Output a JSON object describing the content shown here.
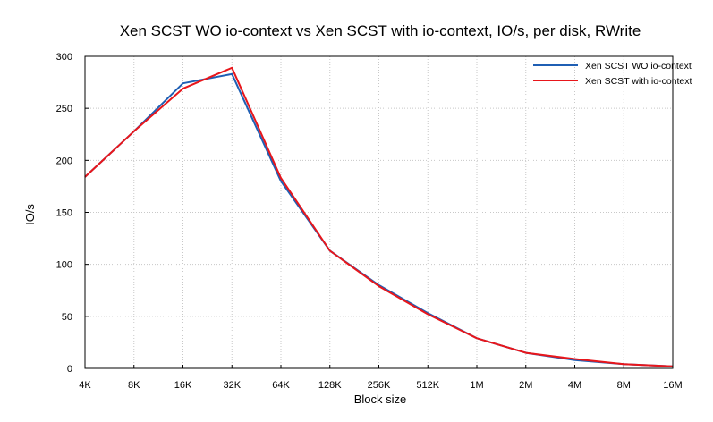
{
  "chart_data": {
    "type": "line",
    "title": "Xen SCST WO io-context vs Xen SCST with io-context, IO/s, per disk, RWrite",
    "xlabel": "Block size",
    "ylabel": "IO/s",
    "categories": [
      "4K",
      "8K",
      "16K",
      "32K",
      "64K",
      "128K",
      "256K",
      "512K",
      "1M",
      "2M",
      "4M",
      "8M",
      "16M"
    ],
    "ylim": [
      0,
      300
    ],
    "yticks": [
      0,
      50,
      100,
      150,
      200,
      250,
      300
    ],
    "grid": true,
    "legend_position": "top-right",
    "series": [
      {
        "name": "Xen SCST WO io-context",
        "color": "#1f5fb4",
        "values": [
          184,
          228,
          274,
          283,
          180,
          113,
          80,
          53,
          29,
          15,
          8,
          4,
          2
        ]
      },
      {
        "name": "Xen SCST with io-context",
        "color": "#e8161b",
        "values": [
          184,
          228,
          269,
          289,
          183,
          113,
          79,
          52,
          29,
          15,
          9,
          4,
          2
        ]
      }
    ]
  }
}
